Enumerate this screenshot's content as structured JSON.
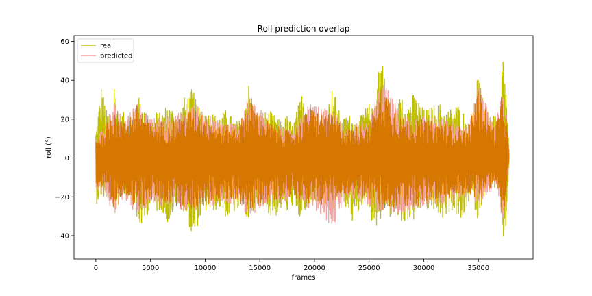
{
  "chart_data": {
    "type": "line",
    "title": "Roll prediction overlap",
    "xlabel": "frames",
    "ylabel": "roll (°)",
    "xlim": [
      -2000,
      40000
    ],
    "ylim": [
      -52,
      63
    ],
    "x_ticks": [
      0,
      5000,
      10000,
      15000,
      20000,
      25000,
      30000,
      35000
    ],
    "y_ticks": [
      -40,
      -20,
      0,
      20,
      40,
      60
    ],
    "grid": false,
    "legend_position": "top-left",
    "x_range_of_data": [
      0,
      37800
    ],
    "series": [
      {
        "name": "real",
        "color": "#bfbf00",
        "envelope": {
          "x": [
            0,
            500,
            1000,
            1500,
            1700,
            2000,
            2500,
            3000,
            3500,
            3800,
            4000,
            4500,
            5000,
            5500,
            6000,
            6500,
            7000,
            7500,
            8000,
            8500,
            8900,
            9200,
            9500,
            10000,
            10500,
            11000,
            11500,
            12000,
            12500,
            13000,
            13500,
            13900,
            14200,
            14500,
            15000,
            15500,
            16000,
            16500,
            17000,
            17500,
            18000,
            18500,
            19000,
            19500,
            20000,
            20500,
            21000,
            21700,
            22000,
            22500,
            23000,
            23500,
            24000,
            24500,
            25000,
            25500,
            25800,
            26200,
            26500,
            27000,
            27500,
            28000,
            28500,
            29000,
            29500,
            30000,
            30500,
            31000,
            31500,
            32000,
            32500,
            33000,
            33500,
            34000,
            34500,
            34900,
            35500,
            36000,
            36500,
            37000,
            37200,
            37500,
            37800
          ],
          "high": [
            14,
            38,
            24,
            22,
            45,
            20,
            24,
            18,
            22,
            32,
            31,
            25,
            18,
            24,
            23,
            28,
            26,
            20,
            31,
            33,
            37,
            28,
            30,
            23,
            24,
            22,
            22,
            26,
            20,
            19,
            22,
            40,
            35,
            24,
            22,
            24,
            24,
            21,
            19,
            22,
            17,
            27,
            36,
            28,
            18,
            19,
            22,
            38,
            30,
            19,
            23,
            21,
            18,
            25,
            28,
            24,
            50,
            54,
            37,
            18,
            24,
            36,
            28,
            33,
            30,
            25,
            26,
            28,
            28,
            24,
            26,
            28,
            26,
            18,
            18,
            46,
            27,
            14,
            24,
            17,
            57,
            40,
            5
          ],
          "low": [
            -24,
            -20,
            -22,
            -20,
            -30,
            -20,
            -20,
            -18,
            -20,
            -38,
            -36,
            -34,
            -24,
            -28,
            -27,
            -34,
            -30,
            -20,
            -28,
            -34,
            -46,
            -37,
            -32,
            -28,
            -28,
            -27,
            -26,
            -32,
            -28,
            -28,
            -25,
            -34,
            -32,
            -28,
            -22,
            -26,
            -30,
            -30,
            -26,
            -30,
            -24,
            -34,
            -28,
            -30,
            -22,
            -27,
            -24,
            -28,
            -22,
            -24,
            -26,
            -34,
            -29,
            -22,
            -27,
            -38,
            -33,
            -32,
            -25,
            -32,
            -30,
            -35,
            -32,
            -33,
            -29,
            -24,
            -29,
            -26,
            -33,
            -30,
            -27,
            -30,
            -35,
            -24,
            -22,
            -32,
            -20,
            -12,
            -16,
            -14,
            -43,
            -41,
            -2
          ]
        }
      },
      {
        "name": "predicted",
        "color": "#f4a3a3",
        "envelope": {
          "x": [
            0,
            1000,
            1700,
            2500,
            3800,
            5000,
            7000,
            9000,
            11000,
            13000,
            14000,
            16000,
            18000,
            19500,
            21700,
            23000,
            25000,
            26200,
            28000,
            30000,
            32000,
            34000,
            35000,
            36500,
            37300,
            37800
          ],
          "high": [
            10,
            20,
            30,
            20,
            30,
            20,
            22,
            28,
            20,
            18,
            32,
            20,
            14,
            28,
            24,
            16,
            20,
            40,
            22,
            22,
            20,
            16,
            38,
            16,
            38,
            4
          ],
          "low": [
            -16,
            -20,
            -32,
            -20,
            -30,
            -24,
            -26,
            -28,
            -24,
            -24,
            -30,
            -24,
            -22,
            -26,
            -36,
            -20,
            -24,
            -30,
            -28,
            -26,
            -24,
            -20,
            -24,
            -14,
            -34,
            -2
          ]
        }
      },
      {
        "name": "",
        "color": "#d67800",
        "envelope": {
          "x": [
            0,
            1000,
            1700,
            2500,
            3800,
            5000,
            7000,
            9000,
            11000,
            13000,
            14000,
            16000,
            18000,
            19500,
            21700,
            23000,
            25000,
            26200,
            28000,
            30000,
            32000,
            34000,
            35000,
            36500,
            37300,
            37800
          ],
          "high": [
            10,
            18,
            28,
            18,
            28,
            18,
            20,
            26,
            18,
            16,
            30,
            18,
            13,
            26,
            22,
            15,
            18,
            38,
            20,
            20,
            18,
            15,
            36,
            15,
            36,
            4
          ],
          "low": [
            -15,
            -18,
            -30,
            -18,
            -28,
            -22,
            -24,
            -27,
            -22,
            -22,
            -28,
            -22,
            -20,
            -24,
            -24,
            -18,
            -22,
            -28,
            -26,
            -24,
            -22,
            -18,
            -22,
            -13,
            -32,
            -2
          ]
        }
      }
    ]
  }
}
